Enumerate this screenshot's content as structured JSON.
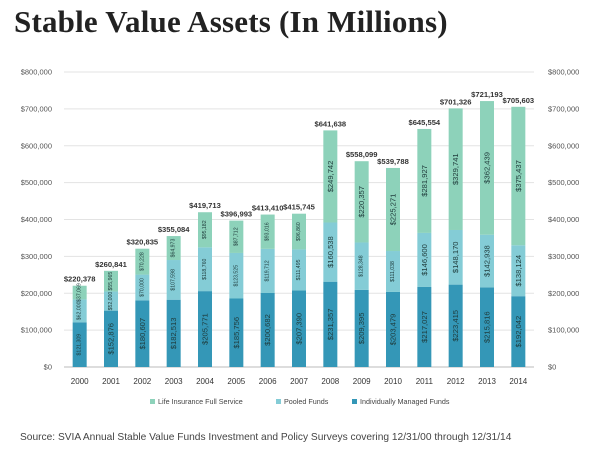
{
  "chart_data": {
    "type": "bar",
    "stacked": true,
    "title": "Stable Value Assets (In Millions)",
    "categories": [
      "2000",
      "2001",
      "2002",
      "2003",
      "2004",
      "2005",
      "2006",
      "2007",
      "2008",
      "2009",
      "2010",
      "2011",
      "2012",
      "2013",
      "2014"
    ],
    "series": [
      {
        "name": "Individually Managed Funds",
        "color": "#3497b7",
        "values": [
          121309,
          152876,
          180607,
          182513,
          205771,
          185756,
          200682,
          207390,
          231357,
          209395,
          203479,
          217027,
          223415,
          215816,
          192042
        ],
        "labels": [
          "$121,309",
          "$152,876",
          "$180,607",
          "$182,513",
          "$205,771",
          "$185,756",
          "$200,682",
          "$207,390",
          "$231,357",
          "$209,395",
          "$203,479",
          "$217,027",
          "$223,415",
          "$215,816",
          "$192,042"
        ]
      },
      {
        "name": "Pooled Funds",
        "color": "#84ccd6",
        "values": [
          62000,
          52000,
          70000,
          107598,
          118760,
          123525,
          119712,
          111495,
          160538,
          128348,
          111038,
          146600,
          148170,
          142938,
          138124
        ],
        "labels": [
          "$62,000",
          "$52,000",
          "$70,000",
          "$107,598",
          "$118,760",
          "$123,525",
          "$119,712",
          "$111,495",
          "$160,538",
          "$128,348",
          "$111,038",
          "$146,600",
          "$148,170",
          "$142,938",
          "$138,124"
        ]
      },
      {
        "name": "Life Insurance Full Service",
        "color": "#8dd2ba",
        "values": [
          37069,
          55965,
          70228,
          64973,
          95182,
          87712,
          93016,
          96860,
          249742,
          220357,
          225271,
          281927,
          329741,
          362439,
          375437
        ],
        "labels": [
          "$37,069",
          "$55,965",
          "$70,228",
          "$64,973",
          "$95,182",
          "$87,712",
          "$93,016",
          "$96,860",
          "$249,742",
          "$220,357",
          "$225,271",
          "$281,927",
          "$329,741",
          "$362,439",
          "$375,437"
        ]
      }
    ],
    "totals": [
      220378,
      260841,
      320835,
      355084,
      419713,
      396993,
      413410,
      415745,
      641638,
      558099,
      539788,
      645554,
      701326,
      721193,
      705603
    ],
    "total_labels": [
      "$220,378",
      "$260,841",
      "$320,835",
      "$355,084",
      "$419,713",
      "$396,993",
      "$413,410",
      "$415,745",
      "$641,638",
      "$558,099",
      "$539,788",
      "$645,554",
      "$701,326",
      "$721,193",
      "$705,603"
    ],
    "ylim": [
      0,
      800000
    ],
    "yticks": [
      0,
      100000,
      200000,
      300000,
      400000,
      500000,
      600000,
      700000,
      800000
    ],
    "ytick_labels": [
      "$0",
      "$100,000",
      "$200,000",
      "$300,000",
      "$400,000",
      "$500,000",
      "$600,000",
      "$700,000",
      "$800,000"
    ],
    "legend_order": [
      "Life Insurance Full Service",
      "Pooled Funds",
      "Individually Managed Funds"
    ],
    "legend_position": "bottom",
    "xlabel": "",
    "ylabel": ""
  },
  "source_text": "Source: SVIA Annual Stable Value Funds Investment and Policy Surveys covering 12/31/00 through 12/31/14"
}
